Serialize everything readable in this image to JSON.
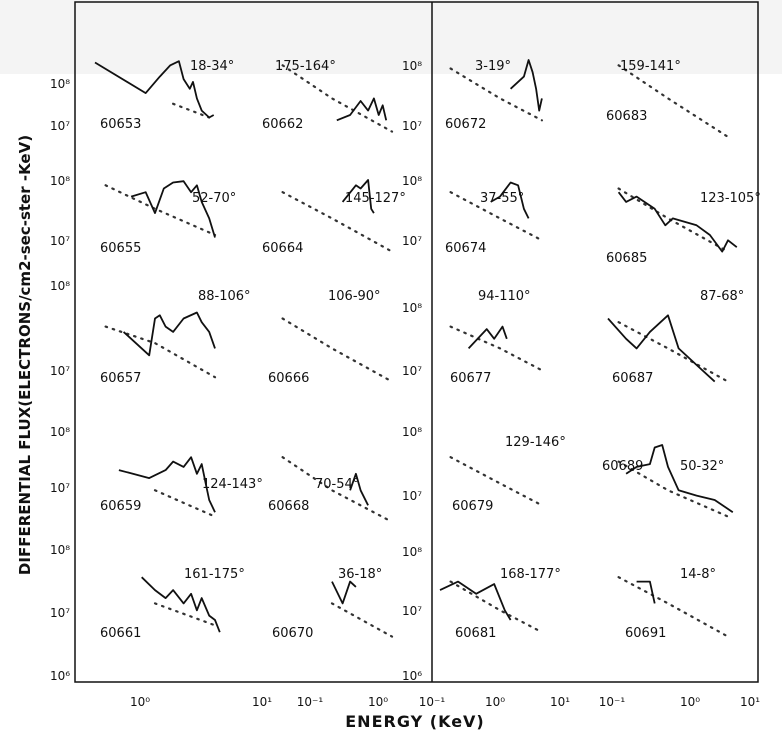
{
  "figure": {
    "ylabel": "DIFFERENTIAL FLUX(ELECTRONS/cm2-sec-ster -KeV)",
    "xlabel": "ENERGY (KeV)",
    "x_ticks": [
      "10⁻¹",
      "10⁰",
      "10¹"
    ],
    "y_ticks": [
      "10⁶",
      "10⁷",
      "10⁸"
    ]
  },
  "chart_data": {
    "type": "line",
    "x_scale": "log",
    "y_scale": "log",
    "xlabel": "ENERGY (KeV)",
    "ylabel": "DIFFERENTIAL FLUX(ELECTRONS/cm2-sec-ster -KeV)",
    "ylim": [
      1000000.0,
      100000000.0
    ],
    "series": [
      {
        "id": "60653",
        "angle": "18-34°",
        "points": [
          [
            0.1,
            90000000.0
          ],
          [
            0.7,
            25000000.0
          ],
          [
            1.2,
            50000000.0
          ],
          [
            1.8,
            80000000.0
          ],
          [
            2.5,
            95000000.0
          ],
          [
            3,
            45000000.0
          ],
          [
            3.8,
            30000000.0
          ],
          [
            4.3,
            40000000.0
          ],
          [
            5,
            20000000.0
          ],
          [
            6,
            12000000.0
          ],
          [
            8,
            9000000.0
          ],
          [
            9.5,
            10000000.0
          ]
        ],
        "background": [
          [
            2,
            16000000.0
          ],
          [
            4,
            12000000.0
          ],
          [
            8,
            9000000.0
          ]
        ]
      },
      {
        "id": "60655",
        "angle": "52-70°",
        "points": [
          [
            0.4,
            50000000.0
          ],
          [
            0.7,
            60000000.0
          ],
          [
            1,
            25000000.0
          ],
          [
            1.4,
            70000000.0
          ],
          [
            2,
            90000000.0
          ],
          [
            3,
            95000000.0
          ],
          [
            4,
            60000000.0
          ],
          [
            5,
            80000000.0
          ],
          [
            6,
            40000000.0
          ],
          [
            8,
            20000000.0
          ],
          [
            10,
            9000000.0
          ]
        ],
        "background": [
          [
            0.15,
            80000000.0
          ],
          [
            1,
            30000000.0
          ],
          [
            10,
            10000000.0
          ]
        ]
      },
      {
        "id": "60657",
        "angle": "88-106°",
        "points": [
          [
            0.3,
            40000000.0
          ],
          [
            0.8,
            15000000.0
          ],
          [
            1,
            70000000.0
          ],
          [
            1.2,
            80000000.0
          ],
          [
            1.5,
            50000000.0
          ],
          [
            2,
            40000000.0
          ],
          [
            3,
            70000000.0
          ],
          [
            5,
            90000000.0
          ],
          [
            6,
            60000000.0
          ],
          [
            8,
            40000000.0
          ],
          [
            10,
            20000000.0
          ]
        ],
        "background": [
          [
            0.15,
            50000000.0
          ],
          [
            1,
            25000000.0
          ],
          [
            10,
            6000000.0
          ]
        ]
      },
      {
        "id": "60659",
        "angle": "124-143°",
        "points": [
          [
            0.25,
            35000000.0
          ],
          [
            0.8,
            25000000.0
          ],
          [
            1.5,
            35000000.0
          ],
          [
            2,
            50000000.0
          ],
          [
            3,
            40000000.0
          ],
          [
            4,
            60000000.0
          ],
          [
            5,
            30000000.0
          ],
          [
            6,
            45000000.0
          ],
          [
            7,
            20000000.0
          ],
          [
            8,
            10000000.0
          ],
          [
            10,
            6000000.0
          ]
        ],
        "background": [
          [
            1,
            15000000.0
          ],
          [
            10,
            5000000.0
          ]
        ]
      },
      {
        "id": "60661",
        "angle": "161-175°",
        "points": [
          [
            0.6,
            60000000.0
          ],
          [
            1,
            35000000.0
          ],
          [
            1.5,
            25000000.0
          ],
          [
            2,
            35000000.0
          ],
          [
            3,
            20000000.0
          ],
          [
            4,
            30000000.0
          ],
          [
            5,
            15000000.0
          ],
          [
            6,
            25000000.0
          ],
          [
            8,
            12000000.0
          ],
          [
            10,
            10000000.0
          ],
          [
            12,
            6000000.0
          ]
        ],
        "background": [
          [
            1,
            20000000.0
          ],
          [
            10,
            8000000.0
          ]
        ]
      },
      {
        "id": "60662",
        "angle": "175-164°",
        "points": [
          [
            1.2,
            8000000.0
          ],
          [
            2,
            10000000.0
          ],
          [
            3,
            18000000.0
          ],
          [
            4,
            12000000.0
          ],
          [
            5,
            20000000.0
          ],
          [
            6,
            10000000.0
          ],
          [
            7,
            15000000.0
          ],
          [
            8,
            8000000.0
          ]
        ],
        "background": [
          [
            0.15,
            80000000.0
          ],
          [
            1,
            20000000.0
          ],
          [
            10,
            5000000.0
          ]
        ]
      },
      {
        "id": "60664",
        "angle": "145-127°",
        "points": [
          [
            1.5,
            40000000.0
          ],
          [
            2.5,
            80000000.0
          ],
          [
            3,
            70000000.0
          ],
          [
            4,
            100000000.0
          ],
          [
            4.5,
            30000000.0
          ],
          [
            5,
            25000000.0
          ]
        ],
        "background": [
          [
            0.15,
            60000000.0
          ],
          [
            1,
            20000000.0
          ],
          [
            10,
            5000000.0
          ]
        ]
      },
      {
        "id": "60666",
        "angle": "106-90°",
        "points": [],
        "background": [
          [
            0.15,
            70000000.0
          ],
          [
            1,
            20000000.0
          ],
          [
            10,
            5000000.0
          ]
        ]
      },
      {
        "id": "60668",
        "angle": "70-54°",
        "points": [
          [
            2,
            15000000.0
          ],
          [
            2.5,
            30000000.0
          ],
          [
            3,
            15000000.0
          ],
          [
            4,
            8000000.0
          ]
        ],
        "background": [
          [
            0.15,
            60000000.0
          ],
          [
            1,
            15000000.0
          ],
          [
            10,
            4000000.0
          ]
        ]
      },
      {
        "id": "60670",
        "angle": "36-18°",
        "points": [
          [
            1,
            50000000.0
          ],
          [
            1.5,
            20000000.0
          ],
          [
            2,
            50000000.0
          ],
          [
            2.5,
            40000000.0
          ]
        ],
        "background": [
          [
            1,
            20000000.0
          ],
          [
            10,
            5000000.0
          ]
        ]
      },
      {
        "id": "60672",
        "angle": "3-19°",
        "points": [
          [
            1.5,
            30000000.0
          ],
          [
            2.5,
            50000000.0
          ],
          [
            3,
            100000000.0
          ],
          [
            3.5,
            60000000.0
          ],
          [
            4,
            30000000.0
          ],
          [
            4.5,
            12000000.0
          ],
          [
            5,
            20000000.0
          ]
        ],
        "background": [
          [
            0.15,
            70000000.0
          ],
          [
            1,
            20000000.0
          ],
          [
            5,
            8000000.0
          ]
        ]
      },
      {
        "id": "60674",
        "angle": "37-55°",
        "points": [
          [
            0.7,
            40000000.0
          ],
          [
            1,
            50000000.0
          ],
          [
            1.5,
            90000000.0
          ],
          [
            2,
            80000000.0
          ],
          [
            2.5,
            30000000.0
          ],
          [
            3,
            20000000.0
          ]
        ],
        "background": [
          [
            0.15,
            60000000.0
          ],
          [
            1,
            20000000.0
          ],
          [
            5,
            8000000.0
          ]
        ]
      },
      {
        "id": "60677",
        "angle": "94-110°",
        "points": [
          [
            0.3,
            20000000.0
          ],
          [
            0.6,
            45000000.0
          ],
          [
            0.8,
            30000000.0
          ],
          [
            1.1,
            50000000.0
          ],
          [
            1.3,
            30000000.0
          ]
        ],
        "background": [
          [
            0.15,
            50000000.0
          ],
          [
            1,
            20000000.0
          ],
          [
            5,
            8000000.0
          ]
        ]
      },
      {
        "id": "60679",
        "angle": "129-146°",
        "points": [],
        "background": [
          [
            0.15,
            60000000.0
          ],
          [
            1,
            20000000.0
          ],
          [
            5,
            8000000.0
          ]
        ]
      },
      {
        "id": "60681",
        "angle": "168-177°",
        "points": [
          [
            0.1,
            35000000.0
          ],
          [
            0.2,
            50000000.0
          ],
          [
            0.4,
            30000000.0
          ],
          [
            0.8,
            45000000.0
          ],
          [
            1.2,
            15000000.0
          ],
          [
            1.5,
            10000000.0
          ]
        ],
        "background": [
          [
            0.15,
            50000000.0
          ],
          [
            1,
            15000000.0
          ],
          [
            5,
            6000000.0
          ]
        ]
      },
      {
        "id": "60683",
        "angle": "159-141°",
        "points": [],
        "background": [
          [
            0.15,
            80000000.0
          ],
          [
            1,
            20000000.0
          ],
          [
            10,
            4000000.0
          ]
        ]
      },
      {
        "id": "60685",
        "angle": "123-105°",
        "points": [
          [
            0.15,
            60000000.0
          ],
          [
            0.2,
            40000000.0
          ],
          [
            0.3,
            50000000.0
          ],
          [
            0.6,
            30000000.0
          ],
          [
            0.9,
            15000000.0
          ],
          [
            1.2,
            20000000.0
          ],
          [
            3,
            15000000.0
          ],
          [
            5,
            10000000.0
          ],
          [
            8,
            5000000.0
          ],
          [
            10,
            8000000.0
          ],
          [
            14,
            6000000.0
          ]
        ],
        "background": [
          [
            0.15,
            70000000.0
          ],
          [
            1,
            20000000.0
          ],
          [
            10,
            5000000.0
          ]
        ]
      },
      {
        "id": "60687",
        "angle": "87-68°",
        "points": [
          [
            0.1,
            70000000.0
          ],
          [
            0.2,
            30000000.0
          ],
          [
            0.3,
            20000000.0
          ],
          [
            0.5,
            40000000.0
          ],
          [
            1,
            80000000.0
          ],
          [
            1.5,
            20000000.0
          ],
          [
            3,
            10000000.0
          ],
          [
            6,
            5000000.0
          ]
        ],
        "background": [
          [
            0.15,
            60000000.0
          ],
          [
            1,
            20000000.0
          ],
          [
            10,
            5000000.0
          ]
        ]
      },
      {
        "id": "60689",
        "angle": "50-32°",
        "points": [
          [
            0.2,
            30000000.0
          ],
          [
            0.3,
            40000000.0
          ],
          [
            0.5,
            45000000.0
          ],
          [
            0.6,
            90000000.0
          ],
          [
            0.8,
            100000000.0
          ],
          [
            1,
            40000000.0
          ],
          [
            1.5,
            15000000.0
          ],
          [
            3,
            12000000.0
          ],
          [
            6,
            10000000.0
          ],
          [
            12,
            6000000.0
          ]
        ],
        "background": [
          [
            0.15,
            50000000.0
          ],
          [
            1,
            15000000.0
          ],
          [
            10,
            5000000.0
          ]
        ]
      },
      {
        "id": "60691",
        "angle": "14-8°",
        "points": [
          [
            0.3,
            50000000.0
          ],
          [
            0.5,
            50000000.0
          ],
          [
            0.6,
            20000000.0
          ]
        ],
        "background": [
          [
            0.15,
            60000000.0
          ],
          [
            1,
            20000000.0
          ],
          [
            10,
            5000000.0
          ]
        ]
      }
    ]
  }
}
